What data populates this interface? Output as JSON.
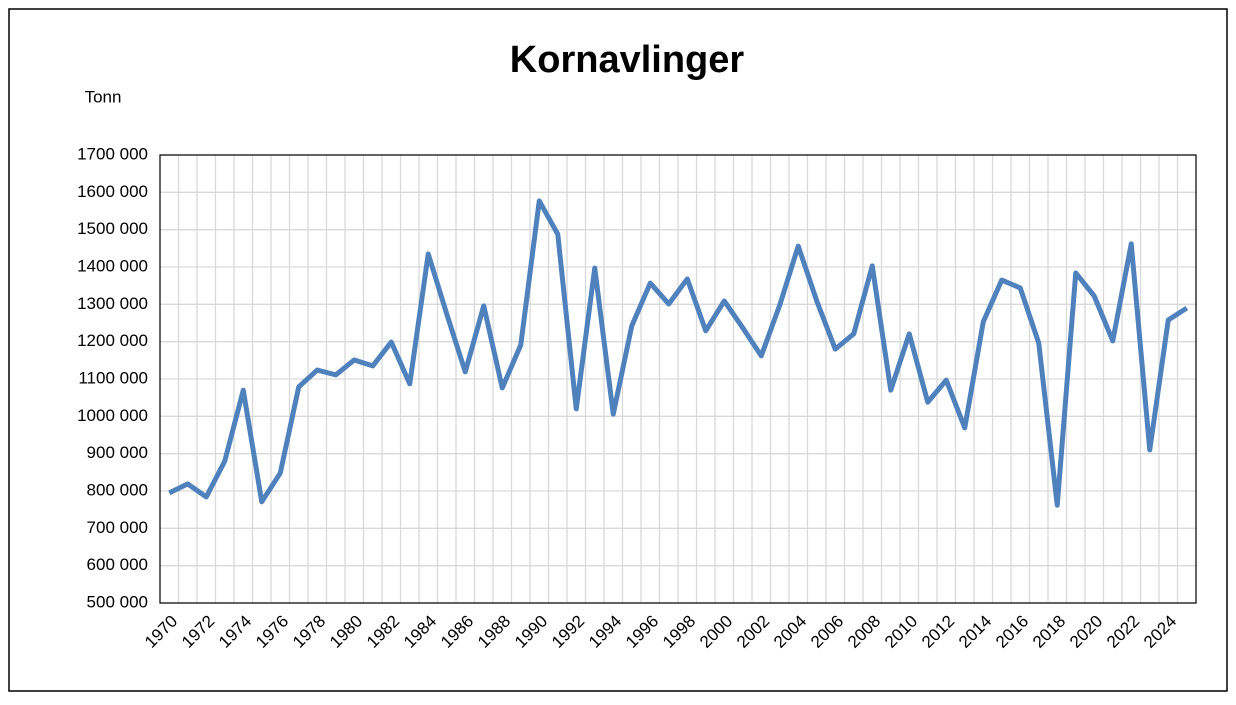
{
  "chart_data": {
    "type": "line",
    "title": "Kornavlinger",
    "y_label": "Tonn",
    "categories": [
      "1970",
      null,
      "1972",
      null,
      "1974",
      null,
      "1976",
      null,
      "1978",
      null,
      "1980",
      null,
      "1982",
      null,
      "1984",
      null,
      "1986",
      null,
      "1988",
      null,
      "1990",
      null,
      "1992",
      null,
      "1994",
      null,
      "1996",
      null,
      "1998",
      null,
      "2000",
      null,
      "2002",
      null,
      "2004",
      null,
      "2006",
      null,
      "2008",
      null,
      "2010",
      null,
      "2012",
      null,
      "2014",
      null,
      "2016",
      null,
      "2018",
      null,
      "2020",
      null,
      "2022",
      null,
      "2024",
      null
    ],
    "values": [
      795000,
      819000,
      784000,
      880000,
      1070000,
      771000,
      848000,
      1079000,
      1124000,
      1111000,
      1151000,
      1135000,
      1199000,
      1087000,
      1435000,
      1274000,
      1119000,
      1296000,
      1076000,
      1191000,
      1577000,
      1488000,
      1020000,
      1397000,
      1006000,
      1242000,
      1357000,
      1301000,
      1368000,
      1229000,
      1309000,
      1237000,
      1162000,
      1298000,
      1456000,
      1309000,
      1180000,
      1221000,
      1403000,
      1070000,
      1221000,
      1038000,
      1097000,
      969000,
      1253000,
      1365000,
      1344000,
      1196000,
      762000,
      1384000,
      1322000,
      1202000,
      1462000,
      910000,
      1258000,
      1290000
    ],
    "color": "#4f81bd",
    "ylim": [
      500000,
      1700000
    ],
    "yticks": [
      {
        "value": 500000,
        "label": "500 000"
      },
      {
        "value": 600000,
        "label": "600 000"
      },
      {
        "value": 700000,
        "label": "700 000"
      },
      {
        "value": 800000,
        "label": "800 000"
      },
      {
        "value": 900000,
        "label": "900 000"
      },
      {
        "value": 1000000,
        "label": "1000 000"
      },
      {
        "value": 1100000,
        "label": "1100 000"
      },
      {
        "value": 1200000,
        "label": "1200 000"
      },
      {
        "value": 1300000,
        "label": "1300 000"
      },
      {
        "value": 1400000,
        "label": "1400 000"
      },
      {
        "value": 1500000,
        "label": "1500 000"
      },
      {
        "value": 1600000,
        "label": "1600 000"
      },
      {
        "value": 1700000,
        "label": "1700 000"
      }
    ],
    "grid": true
  }
}
